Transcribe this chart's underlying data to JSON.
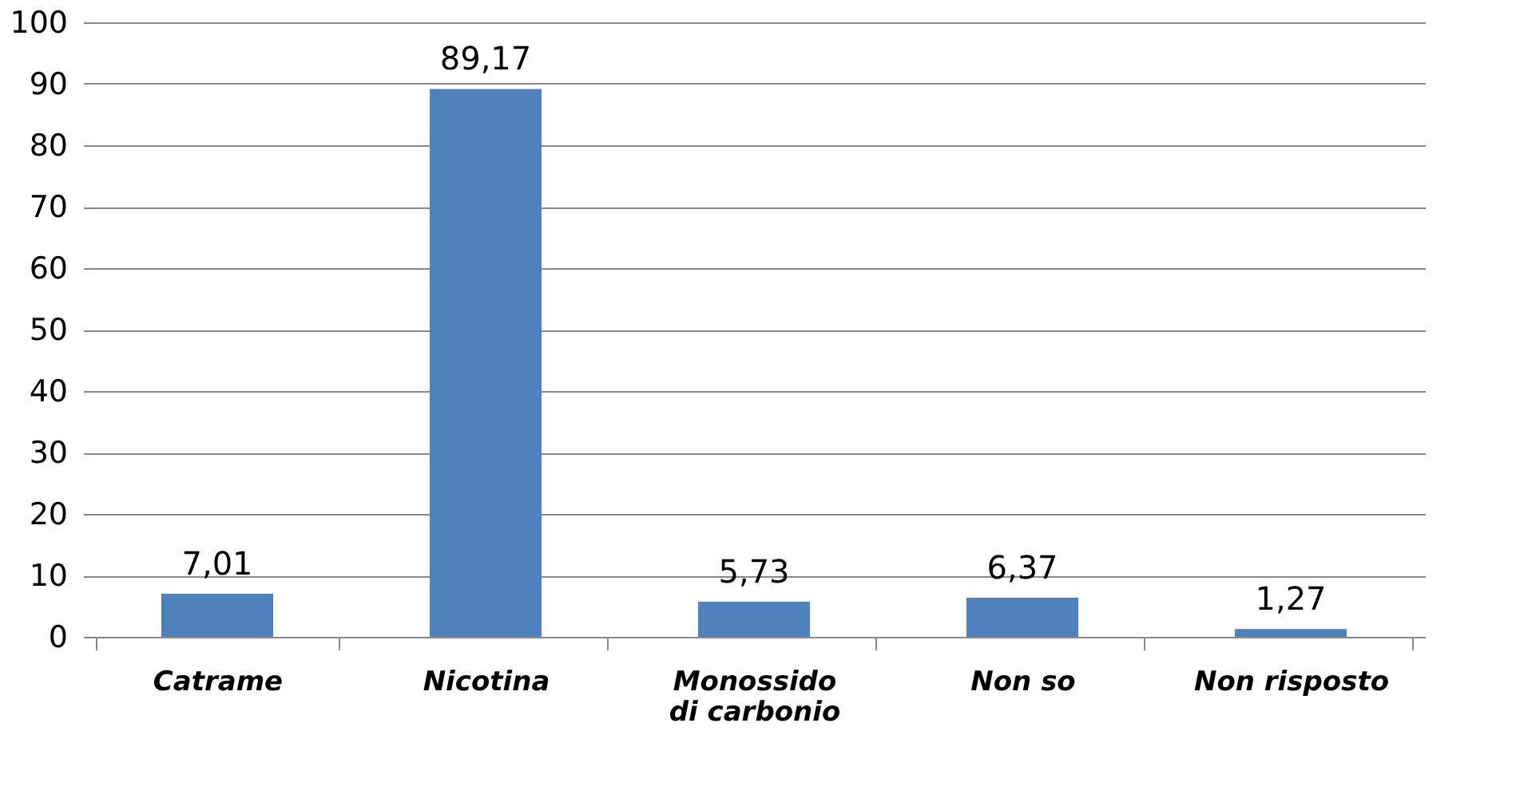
{
  "chart_data": {
    "type": "bar",
    "categories": [
      "Catrame",
      "Nicotina",
      "Monossido\ndi carbonio",
      "Non so",
      "Non risposto"
    ],
    "values": [
      7.01,
      89.17,
      5.73,
      6.37,
      1.27
    ],
    "value_labels": [
      "7,01",
      "89,17",
      "5,73",
      "6,37",
      "1,27"
    ],
    "color": "#4f81bd",
    "ylim": [
      0,
      100
    ],
    "yticks": [
      0,
      10,
      20,
      30,
      40,
      50,
      60,
      70,
      80,
      90,
      100
    ],
    "grid": "y"
  }
}
